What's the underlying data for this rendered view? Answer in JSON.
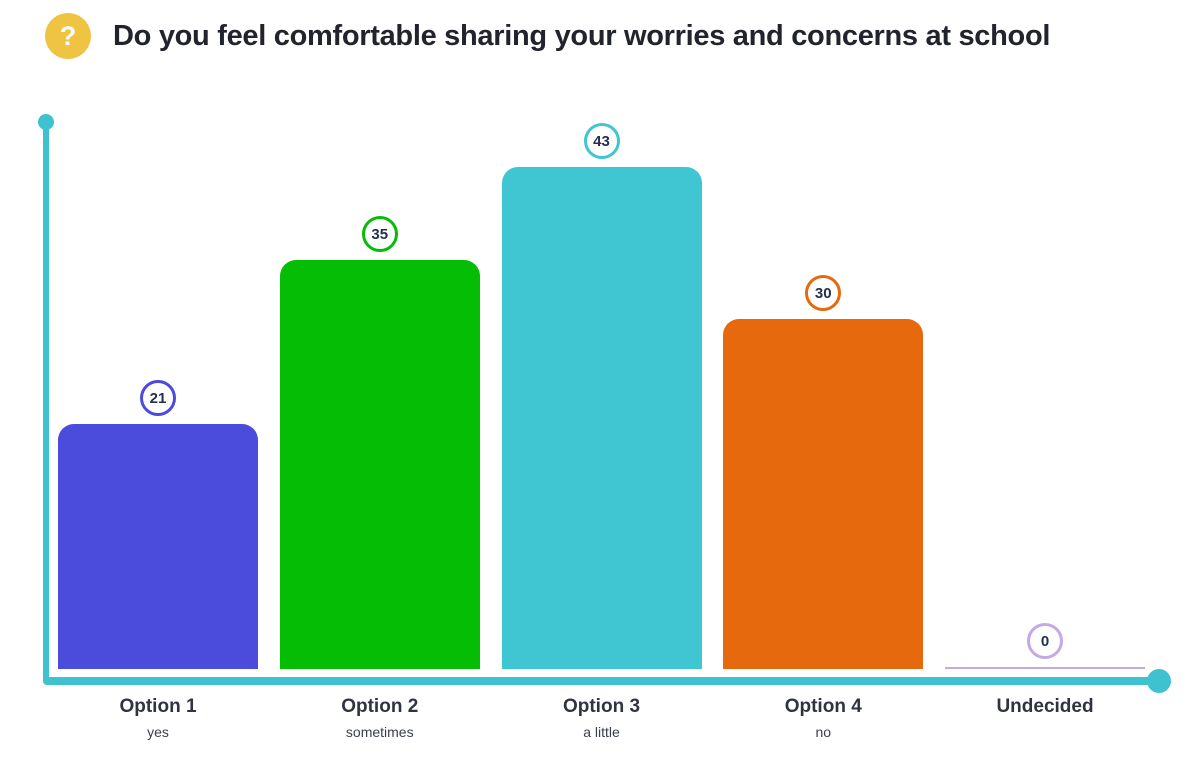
{
  "header": {
    "icon": "question-mark-icon",
    "icon_glyph": "?",
    "title": "Do you feel comfortable sharing your worries and concerns at school"
  },
  "chart_data": {
    "type": "bar",
    "title": "Do you feel comfortable sharing your worries and concerns at school",
    "categories": [
      "Option 1",
      "Option 2",
      "Option 3",
      "Option 4",
      "Undecided"
    ],
    "sublabels": [
      "yes",
      "sometimes",
      "a little",
      "no",
      ""
    ],
    "values": [
      21,
      35,
      43,
      30,
      0
    ],
    "value_labels": [
      "21",
      "35",
      "43",
      "30",
      "0"
    ],
    "bar_colors": [
      "#4b4bdc",
      "#06bd06",
      "#40c5d2",
      "#e7690d",
      "#c3aae6"
    ],
    "ylim": [
      0,
      43
    ],
    "xlabel": "",
    "ylabel": "",
    "grid": false,
    "legend": false,
    "axis_color": "#3fc2d0",
    "value_label_style": "circled number above each bar"
  },
  "colors": {
    "background": "#ffffff",
    "question_icon_bg": "#f0c443",
    "question_icon_glyph": "#ffffff",
    "title_text": "#21242d",
    "axis": "#3fc2d0",
    "category_label_text": "#2f3440",
    "sublabel_text": "#3a3f4a",
    "value_text": "#24304e",
    "undecided_accent": "#c3aae6"
  }
}
